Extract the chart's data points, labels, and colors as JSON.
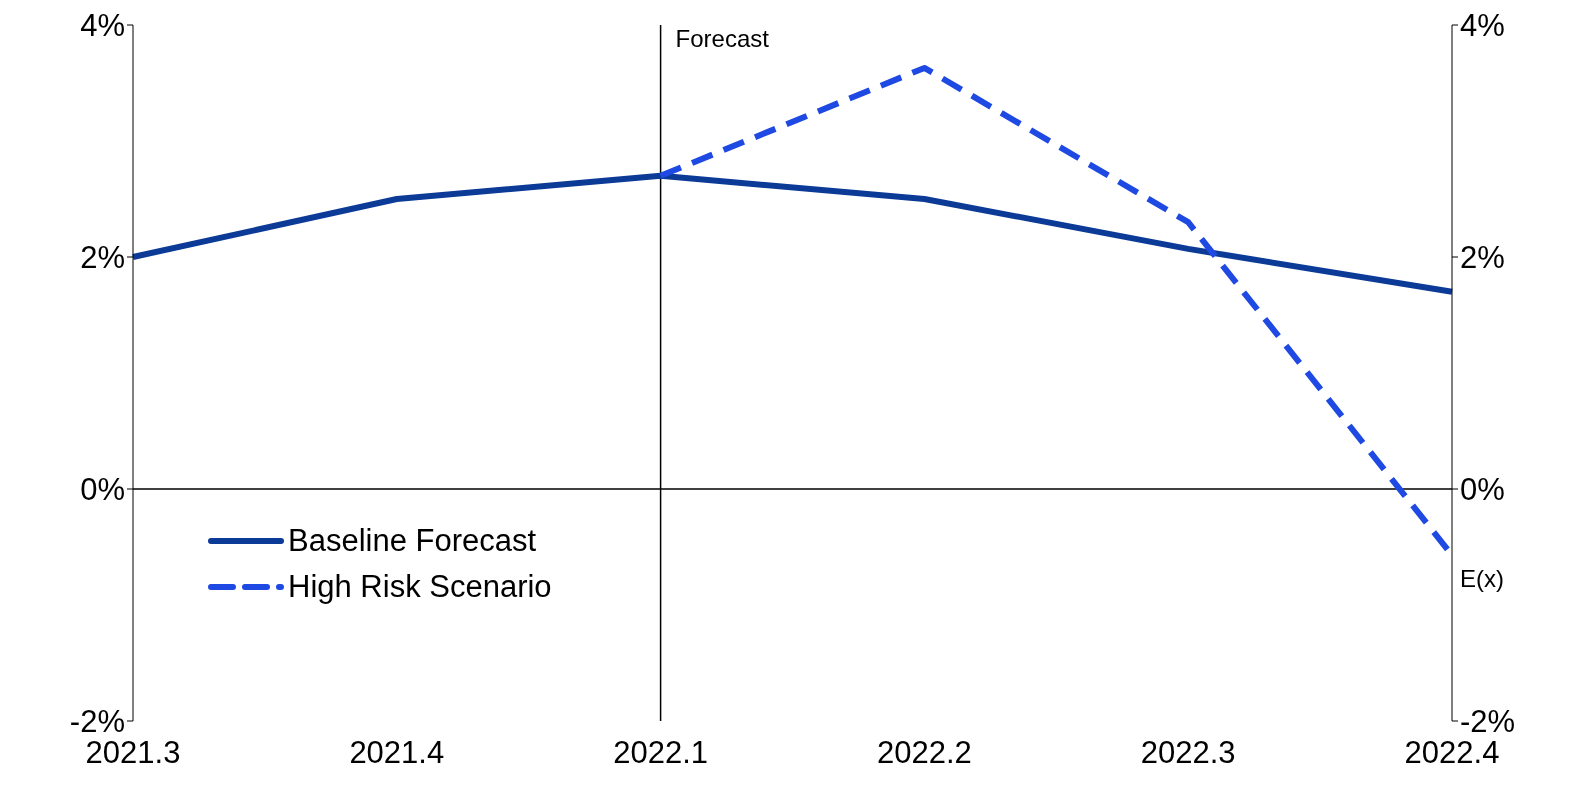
{
  "chart_data": {
    "type": "line",
    "categories": [
      "2021.3",
      "2021.4",
      "2022.1",
      "2022.2",
      "2022.3",
      "2022.4"
    ],
    "series": [
      {
        "name": "Baseline Forecast",
        "color": "#0b3a97",
        "line_style": "solid",
        "values": [
          2.0,
          2.5,
          2.7,
          2.5,
          2.07,
          1.7
        ]
      },
      {
        "name": "High Risk Scenario",
        "color": "#1e49e2",
        "line_style": "dashed",
        "values": [
          null,
          null,
          2.7,
          3.63,
          2.3,
          -0.57
        ]
      }
    ],
    "ylim": [
      -2,
      4
    ],
    "yticks": [
      {
        "value": -2,
        "label": "-2%"
      },
      {
        "value": 0,
        "label": "0%"
      },
      {
        "value": 2,
        "label": "2%"
      },
      {
        "value": 4,
        "label": "4%"
      }
    ],
    "y2lim": [
      -2,
      4
    ],
    "y2ticks": [
      {
        "value": -2,
        "label": "-2%"
      },
      {
        "value": 0,
        "label": "0%"
      },
      {
        "value": 2,
        "label": "2%"
      },
      {
        "value": 4,
        "label": "4%"
      }
    ],
    "ref_lines": [
      {
        "axis": "x",
        "value": "2022.1",
        "label": "Forecast"
      },
      {
        "axis": "y",
        "value": 0
      }
    ],
    "annotations": [
      {
        "text": "E(x)",
        "x": "2022.4",
        "y": -0.57
      }
    ],
    "legend": "bottom left",
    "grid": false,
    "marker": "none"
  }
}
